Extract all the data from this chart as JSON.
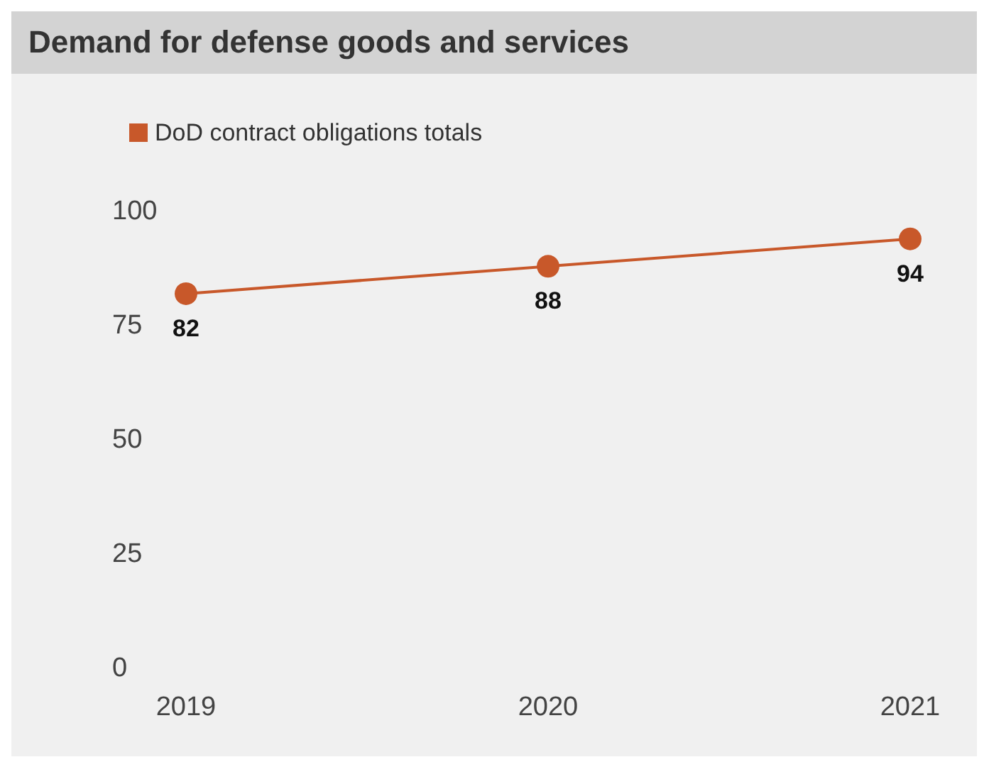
{
  "chart_data": {
    "type": "line",
    "title": "Demand for defense goods and services",
    "categories": [
      "2019",
      "2020",
      "2021"
    ],
    "series": [
      {
        "name": "DoD contract obligations totals",
        "color": "#c8582a",
        "values": [
          82,
          88,
          94
        ]
      }
    ],
    "ylim": [
      0,
      100
    ],
    "yticks": [
      0,
      25,
      50,
      75,
      100
    ],
    "grid": false,
    "legend": "top left",
    "marker": "circle",
    "data_labels": true
  }
}
